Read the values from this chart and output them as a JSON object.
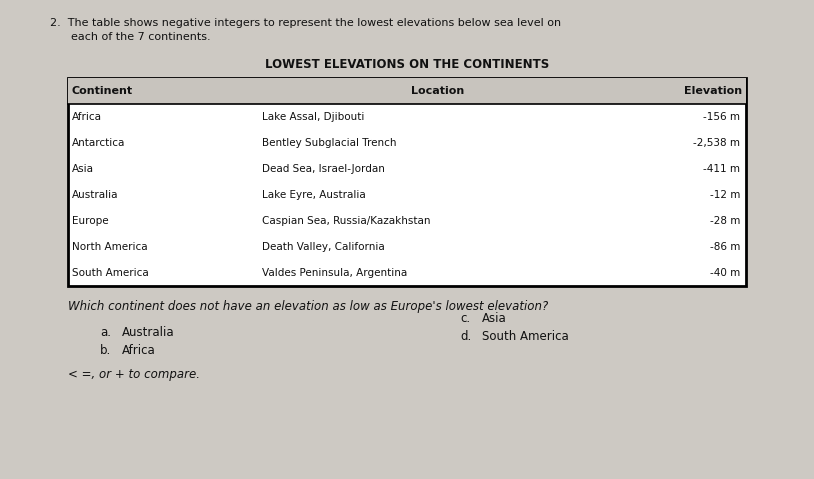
{
  "title": "LOWEST ELEVATIONS ON THE CONTINENTS",
  "header": [
    "Continent",
    "Location",
    "Elevation"
  ],
  "rows": [
    [
      "Africa",
      "Lake Assal, Djibouti",
      "-156 m"
    ],
    [
      "Antarctica",
      "Bentley Subglacial Trench",
      "-2,538 m"
    ],
    [
      "Asia",
      "Dead Sea, Israel-Jordan",
      "-411 m"
    ],
    [
      "Australia",
      "Lake Eyre, Australia",
      "-12 m"
    ],
    [
      "Europe",
      "Caspian Sea, Russia/Kazakhstan",
      "-28 m"
    ],
    [
      "North America",
      "Death Valley, California",
      "-86 m"
    ],
    [
      "South America",
      "Valdes Peninsula, Argentina",
      "-40 m"
    ]
  ],
  "question": "Which continent does not have an elevation as low as Europe's lowest elevation?",
  "choices_left": [
    [
      "a.",
      "Australia"
    ],
    [
      "b.",
      "Africa"
    ]
  ],
  "choices_right": [
    [
      "c.",
      "Asia"
    ],
    [
      "d.",
      "South America"
    ]
  ],
  "footnote": "< =, or + to compare.",
  "preamble_line1": "2.  The table shows negative integers to represent the lowest elevations below sea level on",
  "preamble_line2": "      each of the 7 continents.",
  "bg_color": "#cdc9c3",
  "text_color": "#111111",
  "title_fontsize": 8.5,
  "body_fontsize": 7.5,
  "header_fontsize": 8.0,
  "question_fontsize": 8.5,
  "choice_fontsize": 8.5,
  "preamble_fontsize": 8.0
}
